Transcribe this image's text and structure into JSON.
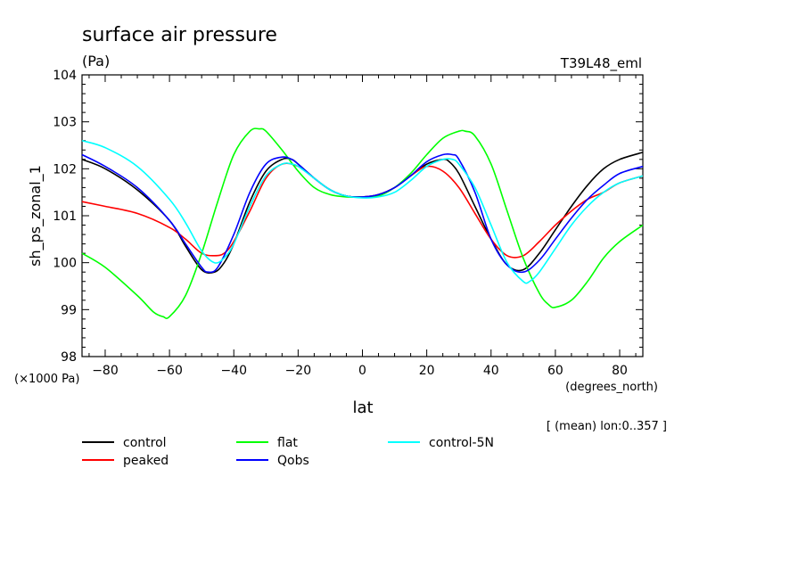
{
  "chart_data": {
    "type": "line",
    "title": "surface air pressure",
    "units": "(Pa)",
    "run_label": "T39L48_eml",
    "ylabel": "sh_ps_zonal_1",
    "y_scale_note": "(×1000 Pa)",
    "xlabel": "lat",
    "x_units": "(degrees_north)",
    "averaging_note": "[ (mean) lon:0..357 ]",
    "xlim": [
      -87.2,
      87.2
    ],
    "ylim": [
      98,
      104
    ],
    "x_ticks": [
      -80,
      -60,
      -40,
      -20,
      0,
      20,
      40,
      60,
      80
    ],
    "x_tick_labels": [
      "−80",
      "−60",
      "−40",
      "−20",
      "0",
      "20",
      "40",
      "60",
      "80"
    ],
    "y_ticks": [
      98,
      99,
      100,
      101,
      102,
      103,
      104
    ],
    "y_tick_labels": [
      "98",
      "99",
      "100",
      "101",
      "102",
      "103",
      "104"
    ],
    "grid": false,
    "legend_placement": "below",
    "series": [
      {
        "name": "control",
        "color": "#000000",
        "x": [
          -87.2,
          -80,
          -70,
          -60,
          -55,
          -50,
          -46,
          -43,
          -40,
          -35,
          -30,
          -25,
          -22,
          -20,
          -15,
          -10,
          -5,
          0,
          5,
          10,
          15,
          20,
          25,
          27,
          30,
          35,
          40,
          45,
          50,
          55,
          60,
          65,
          70,
          75,
          80,
          87.2
        ],
        "y": [
          102.2,
          102,
          101.55,
          100.9,
          100.35,
          99.85,
          99.8,
          100,
          100.4,
          101.3,
          101.95,
          102.2,
          102.2,
          102.1,
          101.8,
          101.55,
          101.42,
          101.4,
          101.45,
          101.6,
          101.85,
          102.1,
          102.2,
          102.15,
          101.9,
          101.2,
          100.5,
          99.95,
          99.85,
          100.2,
          100.7,
          101.2,
          101.65,
          102,
          102.2,
          102.35
        ]
      },
      {
        "name": "peaked",
        "color": "#ff0000",
        "x": [
          -87.2,
          -80,
          -70,
          -60,
          -55,
          -50,
          -46,
          -43,
          -40,
          -35,
          -30,
          -25,
          -20,
          -15,
          -10,
          -5,
          0,
          5,
          10,
          15,
          20,
          25,
          30,
          35,
          40,
          45,
          50,
          55,
          60,
          65,
          70,
          75,
          80,
          87.2
        ],
        "y": [
          101.3,
          101.2,
          101.05,
          100.75,
          100.5,
          100.2,
          100.15,
          100.2,
          100.45,
          101.1,
          101.8,
          102.1,
          102.05,
          101.8,
          101.55,
          101.42,
          101.4,
          101.45,
          101.6,
          101.85,
          102.05,
          101.95,
          101.6,
          101.05,
          100.5,
          100.15,
          100.15,
          100.45,
          100.8,
          101.1,
          101.35,
          101.5,
          101.7,
          101.85
        ]
      },
      {
        "name": "flat",
        "color": "#00ff00",
        "x": [
          -87.2,
          -80,
          -70,
          -65,
          -62,
          -60,
          -55,
          -50,
          -45,
          -40,
          -35,
          -32,
          -30,
          -25,
          -20,
          -15,
          -10,
          -5,
          0,
          5,
          10,
          15,
          20,
          25,
          30,
          32,
          35,
          40,
          45,
          50,
          55,
          58,
          60,
          65,
          70,
          75,
          80,
          87.2
        ],
        "y": [
          100.2,
          99.9,
          99.3,
          98.95,
          98.85,
          98.85,
          99.3,
          100.2,
          101.3,
          102.3,
          102.8,
          102.85,
          102.8,
          102.4,
          101.95,
          101.6,
          101.45,
          101.4,
          101.4,
          101.42,
          101.6,
          101.9,
          102.3,
          102.65,
          102.8,
          102.8,
          102.7,
          102.1,
          101.1,
          100.1,
          99.35,
          99.1,
          99.05,
          99.2,
          99.6,
          100.1,
          100.45,
          100.8
        ]
      },
      {
        "name": "Qobs",
        "color": "#0000ff",
        "x": [
          -87.2,
          -80,
          -70,
          -60,
          -55,
          -50,
          -48,
          -45,
          -40,
          -35,
          -30,
          -25,
          -22,
          -20,
          -15,
          -10,
          -5,
          0,
          5,
          10,
          15,
          20,
          25,
          28,
          30,
          35,
          40,
          45,
          50,
          55,
          60,
          65,
          70,
          75,
          80,
          87.2
        ],
        "y": [
          102.3,
          102.05,
          101.6,
          100.9,
          100.4,
          99.9,
          99.8,
          99.9,
          100.6,
          101.5,
          102.1,
          102.25,
          102.2,
          102.1,
          101.8,
          101.55,
          101.42,
          101.4,
          101.45,
          101.6,
          101.85,
          102.15,
          102.3,
          102.3,
          102.2,
          101.5,
          100.5,
          99.95,
          99.8,
          100.05,
          100.5,
          100.95,
          101.35,
          101.65,
          101.9,
          102.05
        ]
      },
      {
        "name": "control-5N",
        "color": "#00ffff",
        "x": [
          -87.2,
          -80,
          -70,
          -60,
          -55,
          -50,
          -46,
          -43,
          -40,
          -35,
          -30,
          -25,
          -22,
          -20,
          -15,
          -10,
          -5,
          0,
          5,
          10,
          15,
          20,
          25,
          28,
          30,
          35,
          40,
          45,
          50,
          52,
          55,
          60,
          65,
          70,
          75,
          80,
          87.2
        ],
        "y": [
          102.6,
          102.45,
          102.05,
          101.35,
          100.85,
          100.25,
          100.0,
          100.1,
          100.4,
          101.2,
          101.85,
          102.1,
          102.1,
          102.05,
          101.8,
          101.55,
          101.42,
          101.38,
          101.4,
          101.5,
          101.75,
          102.05,
          102.2,
          102.2,
          102.1,
          101.6,
          100.8,
          100.0,
          99.6,
          99.6,
          99.8,
          100.3,
          100.8,
          101.2,
          101.5,
          101.7,
          101.85
        ]
      }
    ]
  }
}
